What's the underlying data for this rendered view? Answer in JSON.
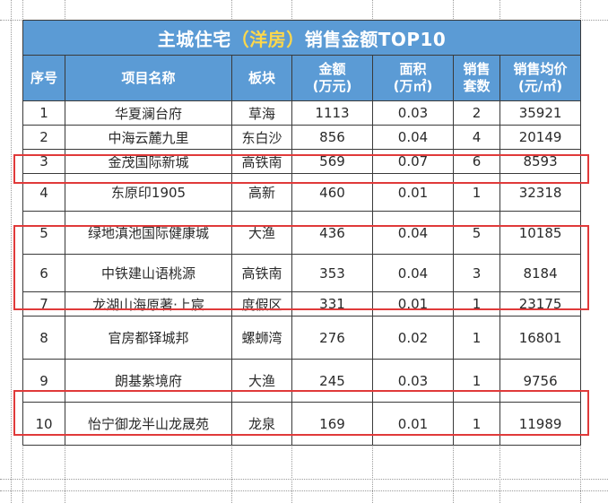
{
  "title": {
    "prefix": "主城住宅",
    "highlight": "（洋房）",
    "suffix": "销售金额TOP10"
  },
  "columns": [
    {
      "line1": "序号",
      "line2": ""
    },
    {
      "line1": "项目名称",
      "line2": ""
    },
    {
      "line1": "板块",
      "line2": ""
    },
    {
      "line1": "金额",
      "line2": "(万元)"
    },
    {
      "line1": "面积",
      "line2": "(万㎡)"
    },
    {
      "line1": "销售",
      "line2": "套数"
    },
    {
      "line1": "销售均价",
      "line2": "(元/㎡)"
    }
  ],
  "rows": [
    {
      "no": "1",
      "name": "华夏澜台府",
      "area": "草海",
      "amount": "1113",
      "size": "0.03",
      "units": "2",
      "price": "35921"
    },
    {
      "no": "2",
      "name": "中海云麓九里",
      "area": "东白沙",
      "amount": "856",
      "size": "0.04",
      "units": "4",
      "price": "20149"
    },
    {
      "no": "3",
      "name": "金茂国际新城",
      "area": "高铁南",
      "amount": "569",
      "size": "0.07",
      "units": "6",
      "price": "8593"
    },
    {
      "no": "4",
      "name": "东原印1905",
      "area": "高新",
      "amount": "460",
      "size": "0.01",
      "units": "1",
      "price": "32318"
    },
    {
      "no": "5",
      "name": "绿地滇池国际健康城",
      "area": "大渔",
      "amount": "436",
      "size": "0.04",
      "units": "5",
      "price": "10185"
    },
    {
      "no": "6",
      "name": "中铁建山语桃源",
      "area": "高铁南",
      "amount": "353",
      "size": "0.04",
      "units": "3",
      "price": "8184"
    },
    {
      "no": "7",
      "name": "龙湖山海原著·上宸",
      "area": "度假区",
      "amount": "331",
      "size": "0.01",
      "units": "1",
      "price": "23175"
    },
    {
      "no": "8",
      "name": "官房都铎城邦",
      "area": "螺蛳湾",
      "amount": "276",
      "size": "0.02",
      "units": "1",
      "price": "16801"
    },
    {
      "no": "9",
      "name": "朗基紫境府",
      "area": "大渔",
      "amount": "245",
      "size": "0.03",
      "units": "1",
      "price": "9756"
    },
    {
      "no": "10",
      "name": "怡宁御龙半山龙晟苑",
      "area": "龙泉",
      "amount": "169",
      "size": "0.01",
      "units": "1",
      "price": "11989"
    }
  ],
  "colors": {
    "header_bg": "#5b9bd5",
    "title_highlight": "#ffd84a",
    "highlight_box": "#e03a3a"
  }
}
